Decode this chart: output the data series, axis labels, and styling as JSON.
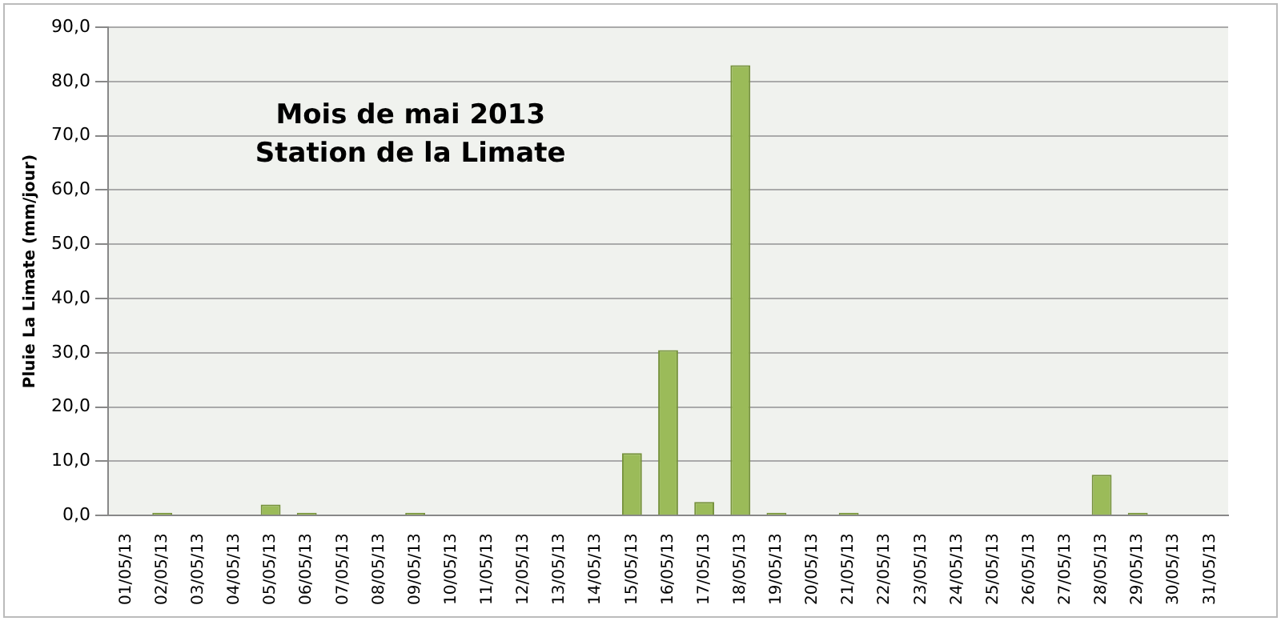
{
  "chart_data": {
    "type": "bar",
    "title": [
      "Mois de mai 2013",
      "Station de la Limate"
    ],
    "ylabel": "Pluie La Limate (mm/jour)",
    "categories": [
      "01/05/13",
      "02/05/13",
      "03/05/13",
      "04/05/13",
      "05/05/13",
      "06/05/13",
      "07/05/13",
      "08/05/13",
      "09/05/13",
      "10/05/13",
      "11/05/13",
      "12/05/13",
      "13/05/13",
      "14/05/13",
      "15/05/13",
      "16/05/13",
      "17/05/13",
      "18/05/13",
      "19/05/13",
      "20/05/13",
      "21/05/13",
      "22/05/13",
      "23/05/13",
      "24/05/13",
      "25/05/13",
      "26/05/13",
      "27/05/13",
      "28/05/13",
      "29/05/13",
      "30/05/13",
      "31/05/13"
    ],
    "values": [
      0,
      0.5,
      0,
      0,
      2,
      0.5,
      0,
      0,
      0.5,
      0,
      0,
      0,
      0,
      0,
      11.5,
      30.5,
      2.5,
      83,
      0.5,
      0,
      0.5,
      0,
      0,
      0,
      0,
      0,
      0,
      7.5,
      0.5,
      0,
      0
    ],
    "color": "#9bbb59",
    "ylim": [
      0,
      90
    ],
    "yticks": [
      {
        "value": 0,
        "label": "0,0"
      },
      {
        "value": 10,
        "label": "10,0"
      },
      {
        "value": 20,
        "label": "20,0"
      },
      {
        "value": 30,
        "label": "30,0"
      },
      {
        "value": 40,
        "label": "40,0"
      },
      {
        "value": 50,
        "label": "50,0"
      },
      {
        "value": 60,
        "label": "60,0"
      },
      {
        "value": 70,
        "label": "70,0"
      },
      {
        "value": 80,
        "label": "80,0"
      },
      {
        "value": 90,
        "label": "90,0"
      }
    ],
    "grid": "y",
    "legend": false
  }
}
